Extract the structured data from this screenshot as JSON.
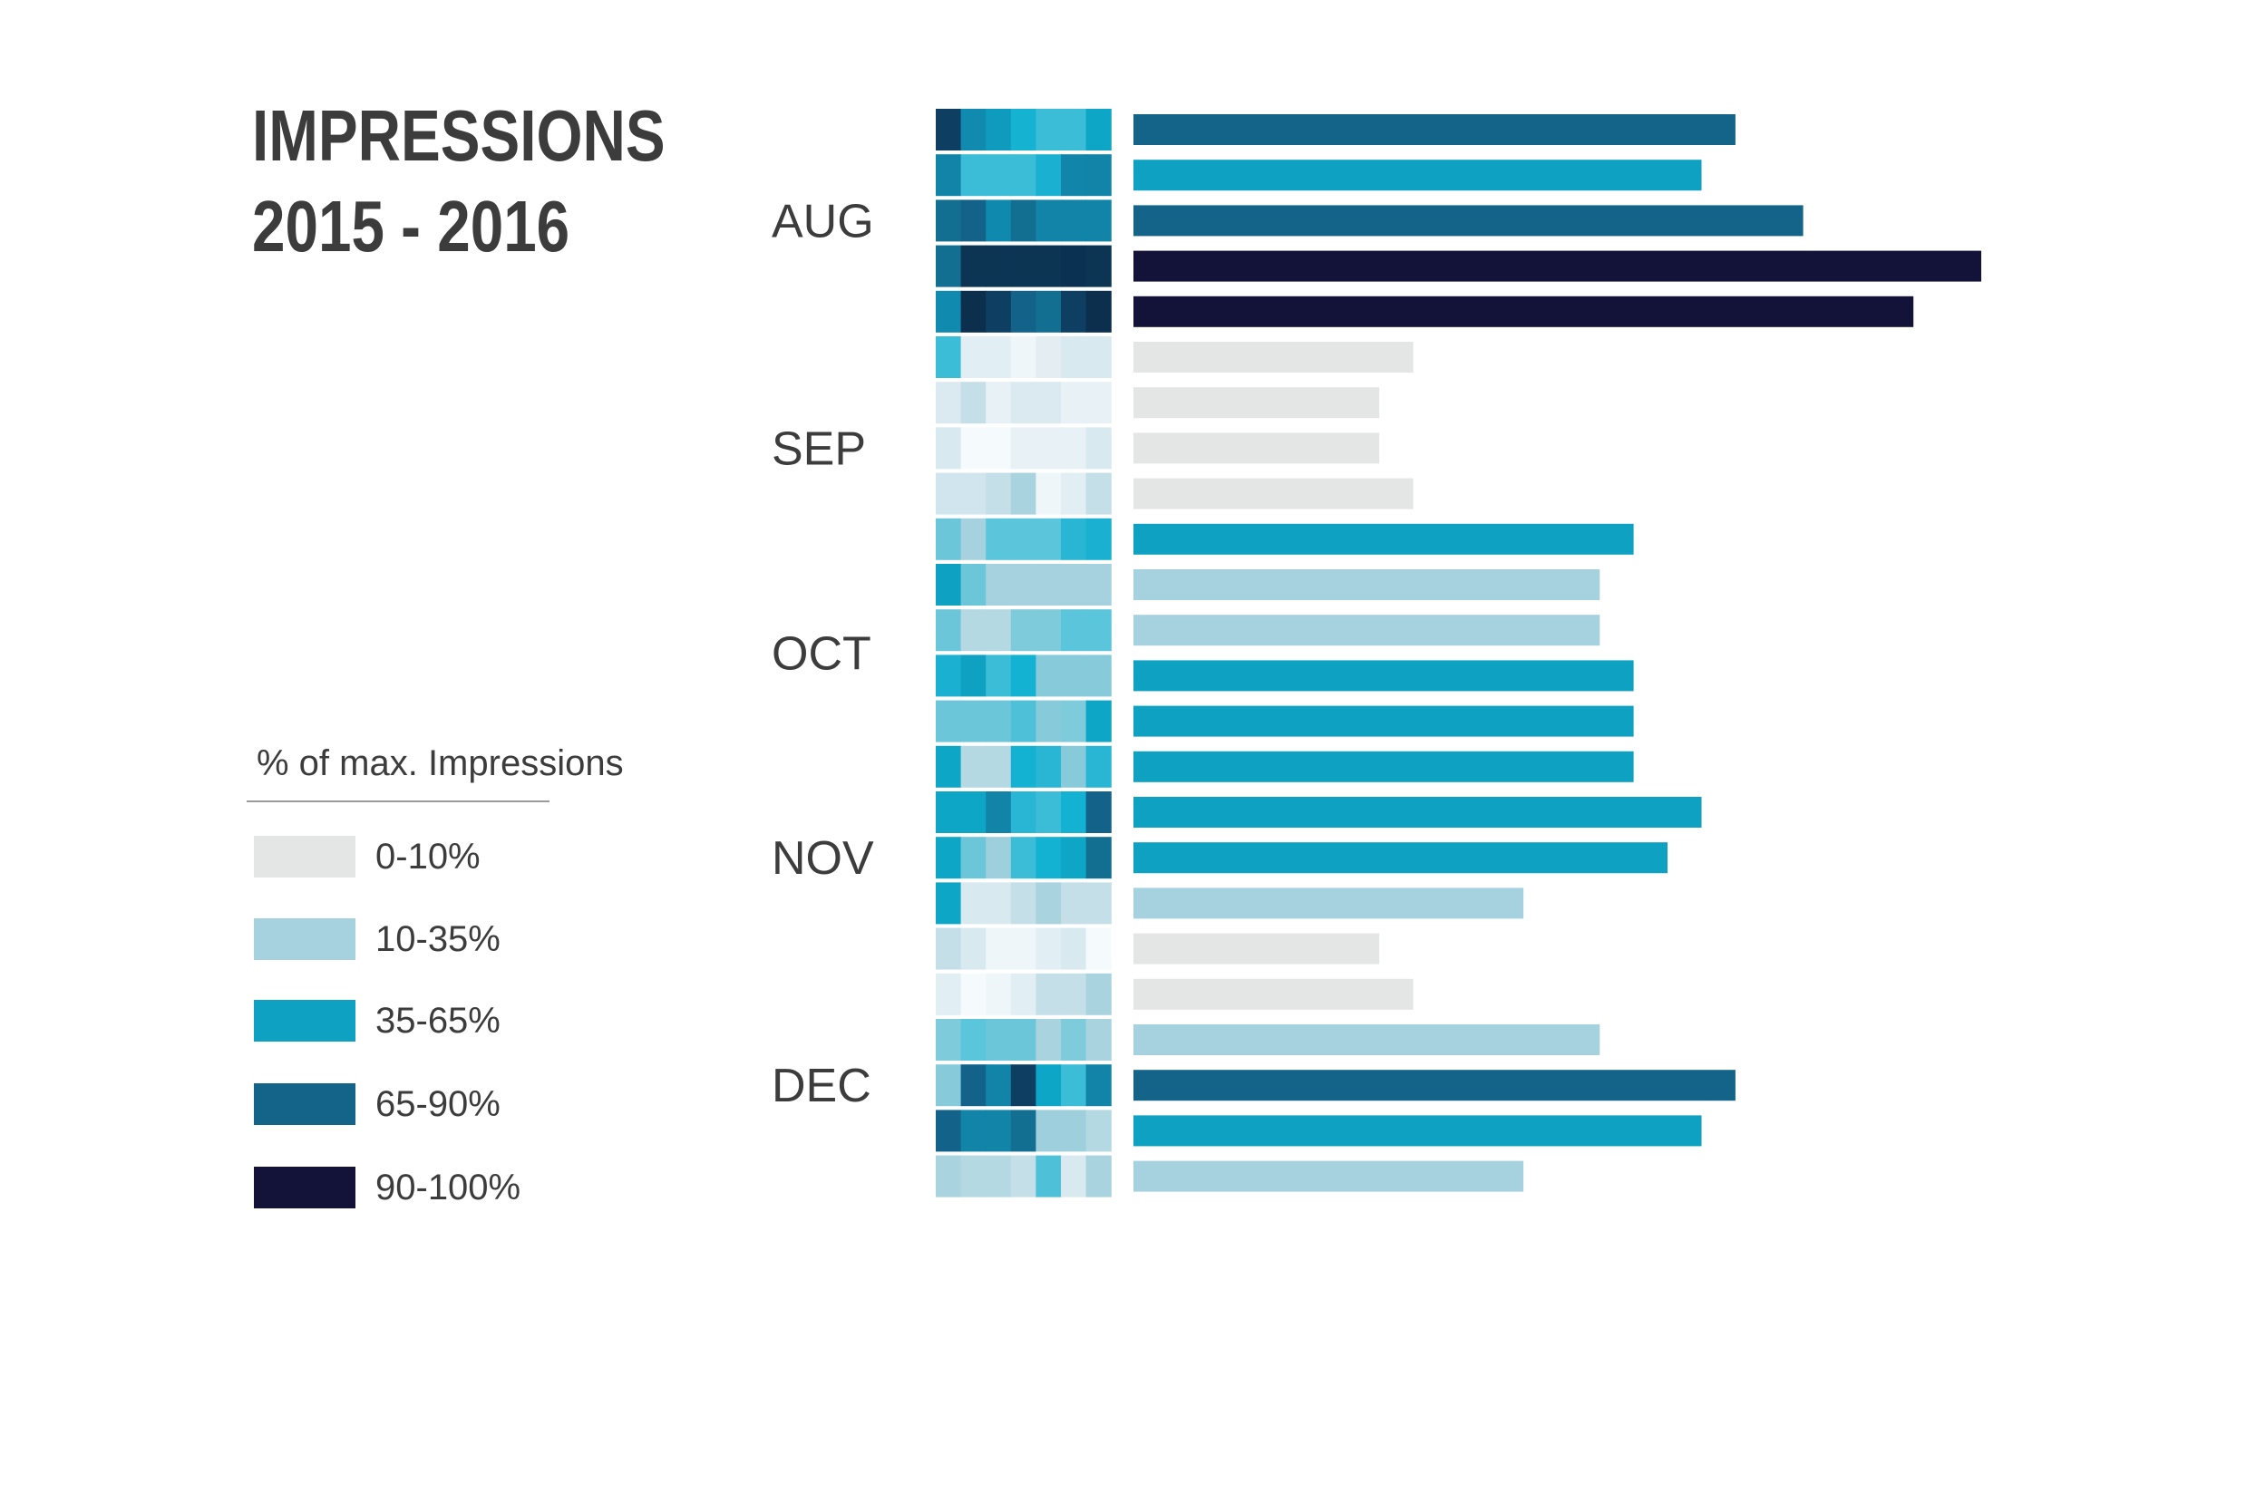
{
  "title": {
    "line1": "IMPRESSIONS",
    "line2": "2015 - 2016"
  },
  "legend": {
    "title": "% of max. Impressions",
    "items": [
      {
        "label": "0-10%",
        "color": "#e4e6e5"
      },
      {
        "label": "10-35%",
        "color": "#a6d1de"
      },
      {
        "label": "35-65%",
        "color": "#0ea1c1"
      },
      {
        "label": "65-90%",
        "color": "#146489"
      },
      {
        "label": "90-100%",
        "color": "#13133a"
      }
    ]
  },
  "chart_data": {
    "type": "bar",
    "title": "IMPRESSIONS 2015 - 2016",
    "orientation": "horizontal",
    "value_unit": "% of max. Impressions (relative)",
    "xlim": [
      0,
      100
    ],
    "months": [
      {
        "label": "AUG",
        "rows": 5
      },
      {
        "label": "SEP",
        "rows": 5
      },
      {
        "label": "OCT",
        "rows": 4
      },
      {
        "label": "NOV",
        "rows": 5
      },
      {
        "label": "DEC",
        "rows": 5
      }
    ],
    "values": [
      71,
      67,
      79,
      100,
      92,
      33,
      29,
      29,
      33,
      59,
      55,
      55,
      59,
      59,
      59,
      67,
      63,
      46,
      29,
      33,
      55,
      71,
      67,
      46
    ],
    "bar_levels": [
      3,
      2,
      3,
      4,
      4,
      0,
      0,
      0,
      0,
      2,
      1,
      1,
      2,
      2,
      2,
      2,
      2,
      1,
      0,
      0,
      1,
      3,
      2,
      1
    ],
    "heatmap_colors": [
      [
        "#0e3f62",
        "#118ab0",
        "#0e9bbd",
        "#15b2d2",
        "#3bbdd7",
        "#3bbdd7",
        "#0ea6c7"
      ],
      [
        "#1184a8",
        "#3bbdd7",
        "#3bbdd7",
        "#3bbdd7",
        "#1ab0d1",
        "#1186aa",
        "#1184a8"
      ],
      [
        "#136f92",
        "#13628a",
        "#0f8aae",
        "#136f92",
        "#1184a8",
        "#1184a8",
        "#1184a8"
      ],
      [
        "#136f92",
        "#0c3554",
        "#0c3554",
        "#0c3554",
        "#0c3554",
        "#0b3152",
        "#0c3554"
      ],
      [
        "#118ab0",
        "#0c2f4e",
        "#0e3f62",
        "#13628a",
        "#136f92",
        "#0e3f62",
        "#0c2f4e"
      ],
      [
        "#3bbdd7",
        "#e1eef3",
        "#e1eef3",
        "#eef6f9",
        "#e4eef2",
        "#d9e9f0",
        "#d9e9f0"
      ],
      [
        "#dbe9f0",
        "#c5dfe8",
        "#e8f2f6",
        "#dbe9f0",
        "#dbe9f0",
        "#e8f2f6",
        "#e8f2f6"
      ],
      [
        "#d9e9f0",
        "#f5fafc",
        "#f5fafc",
        "#e8f2f6",
        "#e8f2f6",
        "#e8f2f6",
        "#d9e9f0"
      ],
      [
        "#d0e5ed",
        "#d0e5ed",
        "#c5dfe8",
        "#a9d3df",
        "#eef6f9",
        "#e1eef3",
        "#c5dfe8"
      ],
      [
        "#6cc6da",
        "#a6d1de",
        "#5ac5db",
        "#5ac5db",
        "#5ac5db",
        "#28b6d4",
        "#1ab0d1"
      ],
      [
        "#0ea1c1",
        "#6cc6da",
        "#a6d1de",
        "#a6d1de",
        "#a6d1de",
        "#a6d1de",
        "#a6d1de"
      ],
      [
        "#6cc6da",
        "#b4d9e3",
        "#b4d9e3",
        "#7ecbdc",
        "#7ecbdc",
        "#5ac5db",
        "#5ac5db"
      ],
      [
        "#1ab0d1",
        "#0ea1c1",
        "#3bbdd7",
        "#13b1d2",
        "#87cbdb",
        "#87cbdb",
        "#87cbdb"
      ],
      [
        "#6cc6da",
        "#6cc6da",
        "#6cc6da",
        "#4ec0d8",
        "#87cbdb",
        "#7ecbdc",
        "#0ea6c7"
      ],
      [
        "#0ea6c7",
        "#b4d9e3",
        "#b4d9e3",
        "#13b1d2",
        "#28b6d4",
        "#87cbdb",
        "#28b6d4"
      ],
      [
        "#0ea6c7",
        "#0ea6c7",
        "#1184a8",
        "#28b6d4",
        "#3bbdd7",
        "#13b1d2",
        "#13628a"
      ],
      [
        "#0ea6c7",
        "#6cc6da",
        "#9ecfdc",
        "#3bbdd7",
        "#13b1d2",
        "#0ea6c7",
        "#136f92"
      ],
      [
        "#0ea6c7",
        "#d9e9f0",
        "#d9e9f0",
        "#c5dfe8",
        "#a9d3df",
        "#c5dfe8",
        "#c5dfe8"
      ],
      [
        "#c5dfe8",
        "#d9e9f0",
        "#eef6f9",
        "#eef6f9",
        "#e1eef3",
        "#d9e9f0",
        "#f5fafc"
      ],
      [
        "#e1eef3",
        "#f5fafc",
        "#eef6f9",
        "#e1eef3",
        "#c5dfe8",
        "#c5dfe8",
        "#a9d3df"
      ],
      [
        "#7ecbdc",
        "#5ac5db",
        "#6cc6da",
        "#6cc6da",
        "#a9d3df",
        "#7ecbdc",
        "#a9d3df"
      ],
      [
        "#87cbdb",
        "#13628a",
        "#1184a8",
        "#0e3f62",
        "#0ea6c7",
        "#3bbdd7",
        "#1184a8"
      ],
      [
        "#13628a",
        "#1184a8",
        "#1184a8",
        "#136f92",
        "#9ecfdc",
        "#9ecfdc",
        "#b4d9e3"
      ],
      [
        "#a9d3df",
        "#b4d9e3",
        "#b4d9e3",
        "#c5dfe8",
        "#4ec0d8",
        "#d9e9f0",
        "#a9d3df"
      ]
    ]
  }
}
